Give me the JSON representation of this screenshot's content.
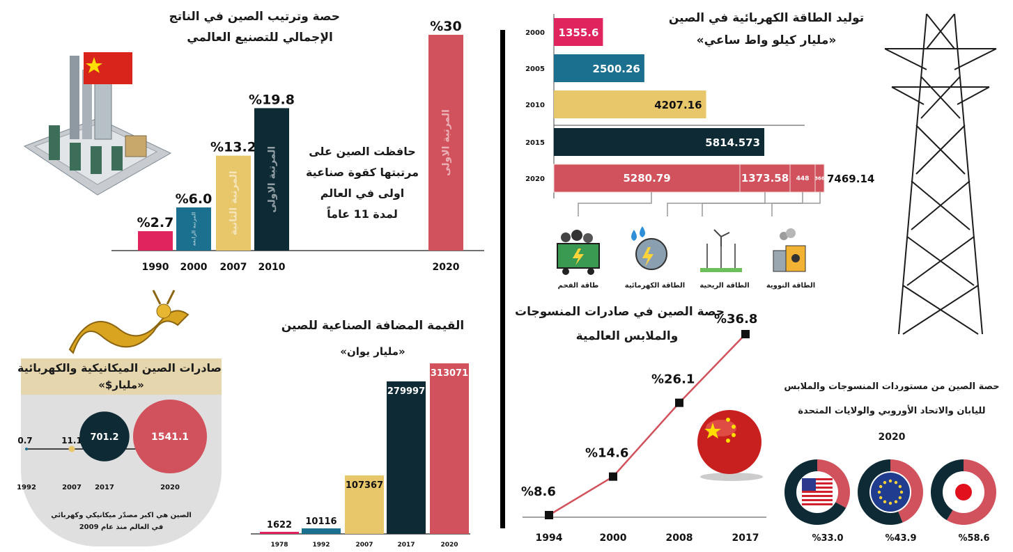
{
  "colors": {
    "red": "#d1515c",
    "navy": "#0d2a35",
    "teal": "#1b6f8f",
    "gold": "#e8c66a",
    "pink": "#e0245e",
    "grey": "#dfdfdf",
    "black": "#111111"
  },
  "manufacturing": {
    "title_line1": "حصة وترتيب الصين في الناتج",
    "title_line2": "الإجمالي للتصنيع العالمي",
    "note": [
      "حافظت الصين على",
      "مرتبتها كقوة صناعية",
      "اولى في العالم",
      "لمدة 11 عاماً"
    ],
    "chart_data": {
      "type": "bar",
      "categories": [
        "1990",
        "2000",
        "2007",
        "2010",
        "2020"
      ],
      "values": [
        2.7,
        6.0,
        13.2,
        19.8,
        30
      ],
      "value_labels": [
        "%2.7",
        "%6.0",
        "%13.2",
        "%19.8",
        "%30"
      ],
      "rank_labels": [
        "",
        "المرتبة الرابعة",
        "المرتبة الثانية",
        "المرتبة الاولى",
        "المرتبة الاولى"
      ],
      "colors": [
        "#e0245e",
        "#1b6f8f",
        "#e8c66a",
        "#0d2a35",
        "#d1515c"
      ]
    }
  },
  "power": {
    "title_line1": "توليد الطاقة الكهربائية في الصين",
    "title_line2": "«مليار كيلو واط ساعي»",
    "chart_data": {
      "type": "bar",
      "orientation": "horizontal",
      "categories": [
        "2000",
        "2005",
        "2010",
        "2015",
        "2020"
      ],
      "values": [
        1355.6,
        2500.26,
        4207.16,
        5814.573,
        7469.14
      ],
      "value_labels": [
        "1355.6",
        "2500.26",
        "4207.16",
        "5814.573",
        "7469.14"
      ],
      "colors": [
        "#e0245e",
        "#1b6f8f",
        "#e8c66a",
        "#0d2a35",
        "#d1515c"
      ],
      "breakdown_2020": [
        {
          "label": "5280.79",
          "value": 5280.79
        },
        {
          "label": "1373.58",
          "value": 1373.58
        },
        {
          "label": "448",
          "value": 448
        },
        {
          "label": "366",
          "value": 366
        }
      ],
      "sources": [
        "طاقة الفحم",
        "الطاقة الكهرمائية",
        "الطاقة الريحية",
        "الطاقة النووية"
      ]
    }
  },
  "exports": {
    "title_line1": "صادرات الصين الميكانيكية والكهربائية",
    "title_line2": "«مليار$»",
    "note_line1": "الصين هي اكبر مصدّر ميكانيكي وكهربائي",
    "note_line2": "في العالم منذ عام 2009",
    "chart_data": {
      "type": "scatter",
      "categories": [
        "1992",
        "2007",
        "2017",
        "2020"
      ],
      "values": [
        0.7,
        11.1,
        701.2,
        1541.1
      ],
      "value_labels": [
        "0.7",
        "11.1",
        "701.2",
        "1541.1"
      ],
      "colors": [
        "#1b6f8f",
        "#e8c66a",
        "#0d2a35",
        "#d1515c"
      ]
    }
  },
  "value_added": {
    "title_line1": "القيمة المضافة الصناعية للصين",
    "title_line2": "«مليار يوان»",
    "chart_data": {
      "type": "bar",
      "categories": [
        "1978",
        "1992",
        "2007",
        "2017",
        "2020"
      ],
      "values": [
        1622,
        10116,
        107367,
        279997,
        313071
      ],
      "value_labels": [
        "1622",
        "10116",
        "107367",
        "279997",
        "313071"
      ],
      "colors": [
        "#e0245e",
        "#1b6f8f",
        "#e8c66a",
        "#0d2a35",
        "#d1515c"
      ],
      "ylim": [
        0,
        313071
      ]
    }
  },
  "textiles": {
    "title_line1": "حصة الصين في صادرات المنسوجات",
    "title_line2": "والملابس العالمية",
    "chart_data": {
      "type": "line",
      "x": [
        "1994",
        "2000",
        "2008",
        "2017"
      ],
      "values": [
        8.6,
        14.6,
        26.1,
        36.8
      ],
      "value_labels": [
        "%8.6",
        "%14.6",
        "%26.1",
        "%36.8"
      ],
      "ylim": [
        0,
        40
      ]
    }
  },
  "imports_share": {
    "title_line1": "حصة الصين من مستوردات المنسوجات والملابس",
    "title_line2": "لليابان والاتحاد الأوروبي والولايات المتحدة",
    "year": "2020",
    "chart_data": {
      "type": "pie",
      "categories": [
        "USA",
        "EU",
        "Japan"
      ],
      "values": [
        33.0,
        43.9,
        58.6
      ],
      "value_labels": [
        "%33.0",
        "%43.9",
        "%58.6"
      ]
    }
  }
}
